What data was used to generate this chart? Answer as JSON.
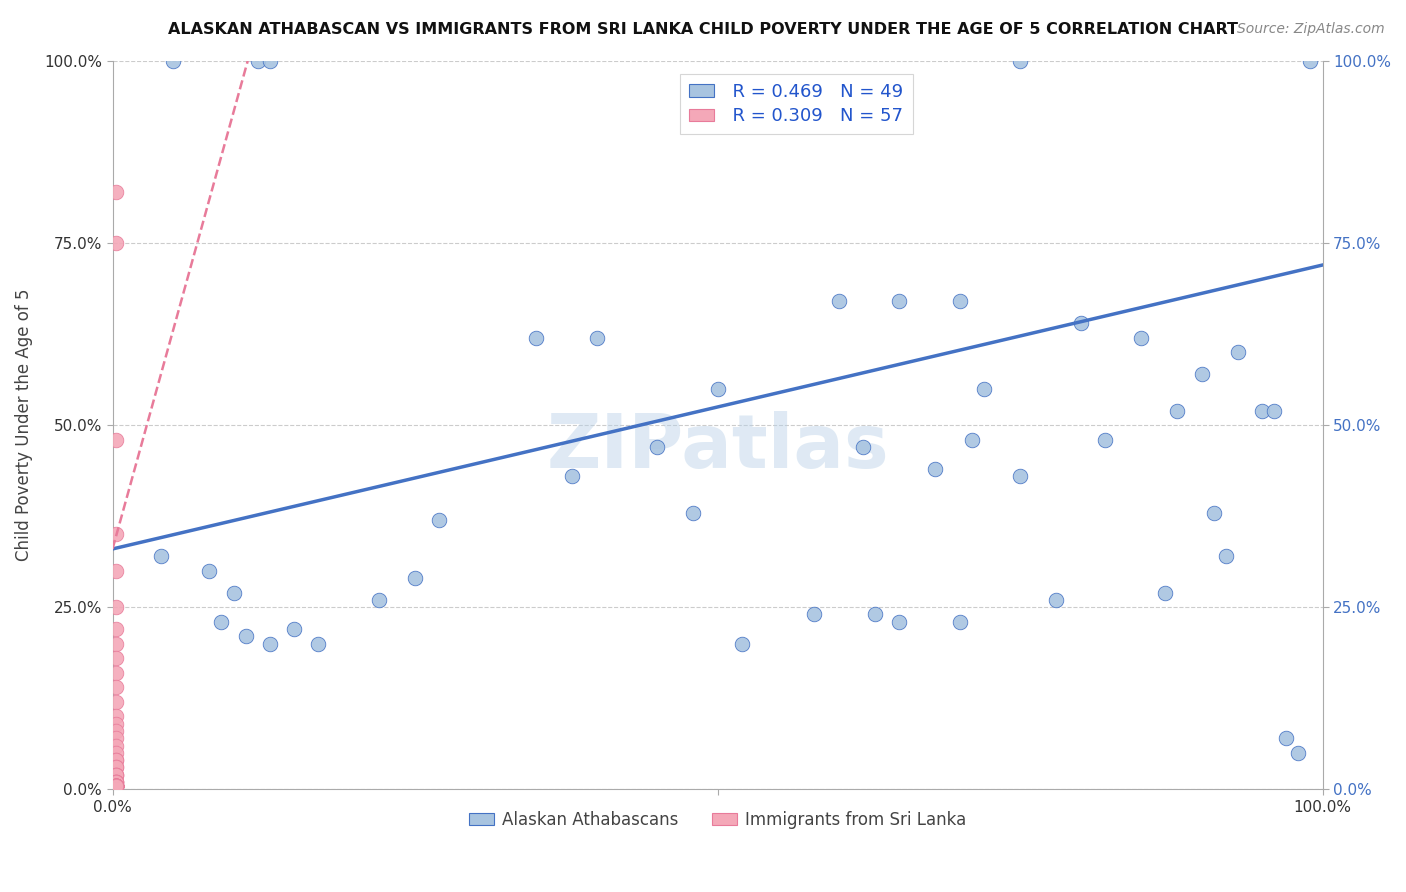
{
  "title": "ALASKAN ATHABASCAN VS IMMIGRANTS FROM SRI LANKA CHILD POVERTY UNDER THE AGE OF 5 CORRELATION CHART",
  "source": "Source: ZipAtlas.com",
  "ylabel": "Child Poverty Under the Age of 5",
  "xlim": [
    0,
    1.0
  ],
  "ylim": [
    0,
    1.0
  ],
  "ytick_positions": [
    0.0,
    0.25,
    0.5,
    0.75,
    1.0
  ],
  "ytick_labels": [
    "0.0%",
    "25.0%",
    "50.0%",
    "75.0%",
    "100.0%"
  ],
  "legend_R1": "R = 0.469",
  "legend_N1": "N = 49",
  "legend_R2": "R = 0.309",
  "legend_N2": "N = 57",
  "color_blue": "#a8c4e0",
  "color_pink": "#f4a8b8",
  "color_line_blue": "#4472c4",
  "color_line_pink": "#e87b9a",
  "watermark": "ZIPatlas",
  "blue_scatter_x": [
    0.05,
    0.12,
    0.13,
    0.27,
    0.35,
    0.38,
    0.4,
    0.45,
    0.48,
    0.5,
    0.52,
    0.58,
    0.6,
    0.62,
    0.63,
    0.65,
    0.65,
    0.68,
    0.7,
    0.7,
    0.71,
    0.72,
    0.75,
    0.75,
    0.78,
    0.8,
    0.82,
    0.85,
    0.87,
    0.88,
    0.9,
    0.91,
    0.92,
    0.93,
    0.95,
    0.96,
    0.97,
    0.98,
    0.99,
    0.04,
    0.08,
    0.09,
    0.1,
    0.11,
    0.13,
    0.15,
    0.17,
    0.22,
    0.25
  ],
  "blue_scatter_y": [
    1.0,
    1.0,
    1.0,
    0.37,
    0.62,
    0.43,
    0.62,
    0.47,
    0.38,
    0.55,
    0.2,
    0.24,
    0.67,
    0.47,
    0.24,
    0.67,
    0.23,
    0.44,
    0.23,
    0.67,
    0.48,
    0.55,
    0.43,
    1.0,
    0.26,
    0.64,
    0.48,
    0.62,
    0.27,
    0.52,
    0.57,
    0.38,
    0.32,
    0.6,
    0.52,
    0.52,
    0.07,
    0.05,
    1.0,
    0.32,
    0.3,
    0.23,
    0.27,
    0.21,
    0.2,
    0.22,
    0.2,
    0.26,
    0.29
  ],
  "pink_scatter_x": [
    0.003,
    0.003,
    0.003,
    0.003,
    0.003,
    0.003,
    0.003,
    0.003,
    0.003,
    0.003,
    0.003,
    0.003,
    0.003,
    0.003,
    0.003,
    0.003,
    0.003,
    0.003,
    0.003,
    0.003,
    0.003,
    0.003,
    0.003,
    0.003,
    0.003,
    0.003,
    0.003,
    0.003,
    0.003,
    0.003,
    0.003,
    0.003,
    0.003,
    0.003,
    0.003,
    0.003,
    0.003,
    0.003,
    0.003,
    0.003,
    0.003,
    0.003,
    0.003,
    0.003,
    0.003,
    0.003,
    0.003,
    0.003,
    0.003,
    0.003,
    0.003,
    0.003,
    0.003,
    0.003,
    0.003,
    0.003,
    0.003
  ],
  "pink_scatter_y": [
    0.82,
    0.75,
    0.48,
    0.35,
    0.3,
    0.25,
    0.22,
    0.2,
    0.18,
    0.16,
    0.14,
    0.12,
    0.1,
    0.09,
    0.08,
    0.07,
    0.06,
    0.05,
    0.04,
    0.04,
    0.03,
    0.03,
    0.02,
    0.02,
    0.02,
    0.01,
    0.01,
    0.01,
    0.01,
    0.005,
    0.005,
    0.005,
    0.005,
    0.005,
    0.005,
    0.005,
    0.005,
    0.005,
    0.005,
    0.005,
    0.005,
    0.005,
    0.005,
    0.005,
    0.005,
    0.005,
    0.005,
    0.005,
    0.005,
    0.005,
    0.005,
    0.005,
    0.005,
    0.005,
    0.005,
    0.005,
    0.005
  ],
  "blue_trendline_x": [
    0.0,
    1.0
  ],
  "blue_trendline_y": [
    0.33,
    0.72
  ],
  "pink_trendline_x": [
    0.0,
    0.115
  ],
  "pink_trendline_y": [
    0.33,
    1.02
  ]
}
